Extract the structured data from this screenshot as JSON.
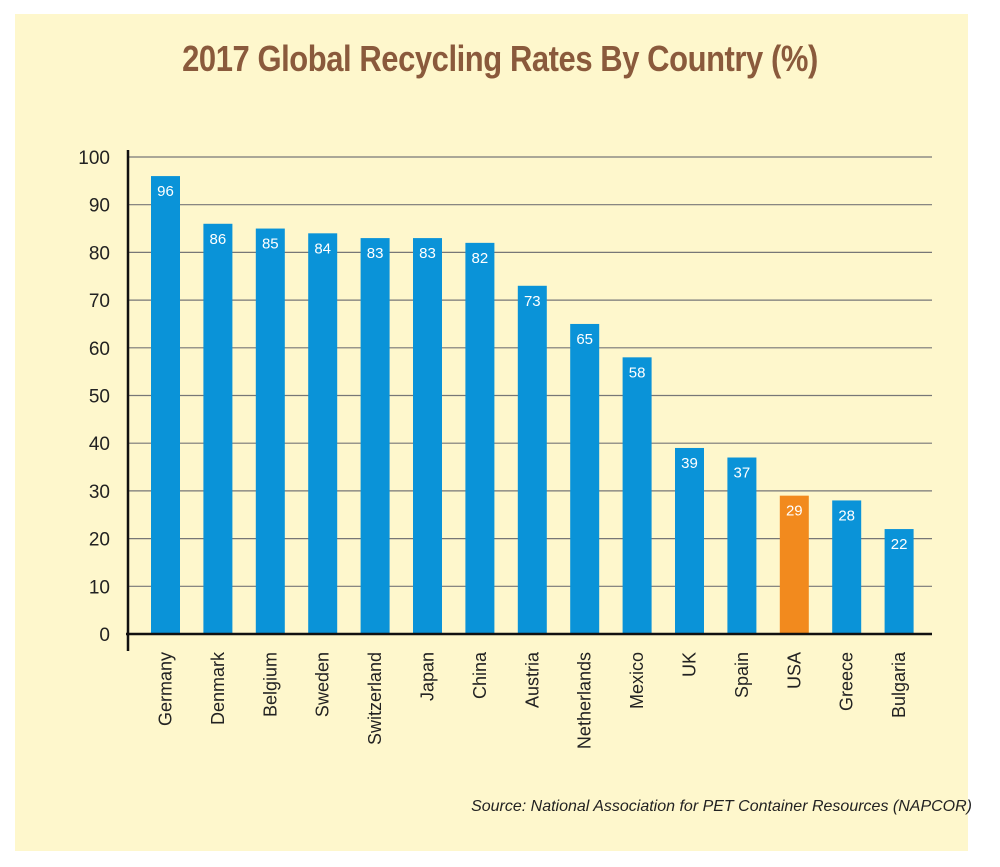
{
  "chart_data": {
    "type": "bar",
    "title": "2017 Global Recycling Rates By Country (%)",
    "categories": [
      "Germany",
      "Denmark",
      "Belgium",
      "Sweden",
      "Switzerland",
      "Japan",
      "China",
      "Austria",
      "Netherlands",
      "Mexico",
      "UK",
      "Spain",
      "USA",
      "Greece",
      "Bulgaria"
    ],
    "values": [
      96,
      86,
      85,
      84,
      83,
      83,
      82,
      73,
      65,
      58,
      39,
      37,
      29,
      28,
      22
    ],
    "highlight_category": "USA",
    "xlabel": "",
    "ylabel": "",
    "ylim": [
      0,
      100
    ],
    "yticks": [
      0,
      10,
      20,
      30,
      40,
      50,
      60,
      70,
      80,
      90,
      100
    ],
    "grid": true,
    "legend": "none",
    "colors": {
      "bar": "#0a93d8",
      "highlight": "#f28a1e",
      "label": "#ffffff",
      "grid": "#777777",
      "axis": "#111111",
      "background": "#fef7cc"
    }
  },
  "source": "Source: National Association for PET Container Resources (NAPCOR)"
}
